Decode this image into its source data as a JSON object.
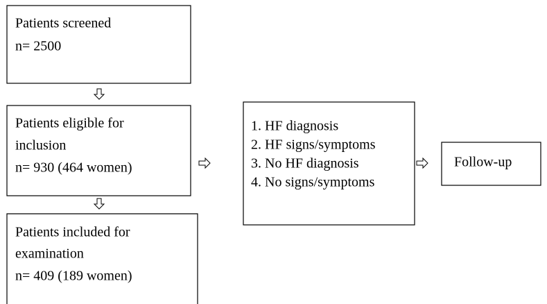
{
  "nodes": [
    {
      "lines": [
        "Patients screened",
        "n= 2500"
      ]
    },
    {
      "lines": [
        "Patients eligible for",
        "inclusion",
        "n= 930 (464 women)"
      ]
    },
    {
      "lines": [
        "Patients included for",
        "examination",
        "n= 409 (189 women)"
      ]
    },
    {
      "lines": [
        "1. HF diagnosis",
        "2. HF signs/symptoms",
        "3. No HF diagnosis",
        "4. No signs/symptoms"
      ]
    },
    {
      "lines": [
        "Follow-up"
      ]
    }
  ]
}
